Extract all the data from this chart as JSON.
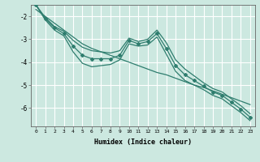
{
  "xlabel": "Humidex (Indice chaleur)",
  "bg_color": "#cce8e0",
  "grid_color": "#ffffff",
  "line_color": "#2e7d6e",
  "x": [
    0,
    1,
    2,
    3,
    4,
    5,
    6,
    7,
    8,
    9,
    10,
    11,
    12,
    13,
    14,
    15,
    16,
    17,
    18,
    19,
    20,
    21,
    22,
    23
  ],
  "y_main": [
    -1.5,
    -2.1,
    -2.5,
    -2.75,
    -3.3,
    -3.7,
    -3.85,
    -3.85,
    -3.85,
    -3.7,
    -3.05,
    -3.2,
    -3.1,
    -2.75,
    -3.4,
    -4.15,
    -4.55,
    -4.8,
    -5.05,
    -5.3,
    -5.45,
    -5.75,
    -6.05,
    -6.4
  ],
  "y_upper": [
    -1.5,
    -2.05,
    -2.45,
    -2.65,
    -3.05,
    -3.35,
    -3.5,
    -3.55,
    -3.6,
    -3.5,
    -2.95,
    -3.1,
    -3.0,
    -2.6,
    -3.15,
    -3.9,
    -4.3,
    -4.6,
    -4.9,
    -5.15,
    -5.3,
    -5.6,
    -5.9,
    -6.25
  ],
  "y_lower": [
    -1.5,
    -2.15,
    -2.6,
    -2.85,
    -3.55,
    -4.05,
    -4.2,
    -4.15,
    -4.1,
    -3.9,
    -3.2,
    -3.3,
    -3.25,
    -2.9,
    -3.65,
    -4.4,
    -4.8,
    -5.0,
    -5.2,
    -5.45,
    -5.6,
    -5.9,
    -6.2,
    -6.55
  ],
  "y_line": [
    -1.7,
    -2.0,
    -2.3,
    -2.6,
    -2.9,
    -3.2,
    -3.4,
    -3.55,
    -3.7,
    -3.85,
    -4.0,
    -4.15,
    -4.3,
    -4.45,
    -4.55,
    -4.7,
    -4.85,
    -5.0,
    -5.1,
    -5.25,
    -5.4,
    -5.55,
    -5.7,
    -5.85
  ],
  "ylim_min": -6.8,
  "ylim_max": -1.5,
  "xlim_min": -0.5,
  "xlim_max": 23.5,
  "yticks": [
    -2,
    -3,
    -4,
    -5,
    -6
  ],
  "xticks": [
    0,
    1,
    2,
    3,
    4,
    5,
    6,
    7,
    8,
    9,
    10,
    11,
    12,
    13,
    14,
    15,
    16,
    17,
    18,
    19,
    20,
    21,
    22,
    23
  ]
}
